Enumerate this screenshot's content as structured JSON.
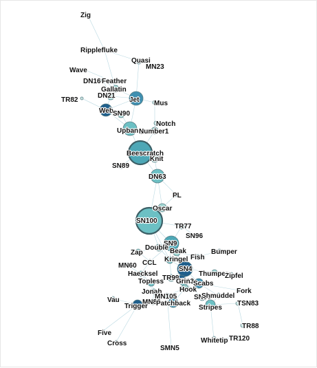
{
  "colors": {
    "edge": "#7fb8c8",
    "node_teal_light": "#9fd6d2",
    "node_teal": "#6cc0c4",
    "node_teal_dark": "#4da7b6",
    "node_blue": "#3f8fb0",
    "node_blue_dark": "#1f5f8c",
    "background": "#ffffff"
  },
  "network": {
    "nodes": [
      {
        "label": "Zig",
        "color": "#cfe9e6"
      },
      {
        "label": "Ripplefluke",
        "color": "#cfe9e6"
      },
      {
        "label": "Quasi",
        "color": "#cfe9e6"
      },
      {
        "label": "MN23",
        "color": "#cfe9e6"
      },
      {
        "label": "Wave",
        "color": "#cfe9e6"
      },
      {
        "label": "DN16",
        "color": "#cfe9e6"
      },
      {
        "label": "Feather",
        "color": "#cfe9e6"
      },
      {
        "label": "Gallatin",
        "color": "#9fd6d2"
      },
      {
        "label": "DN21",
        "color": "#9fd6d2"
      },
      {
        "label": "Jet",
        "color": "#3f8fb0"
      },
      {
        "label": "TR82",
        "color": "#cfe9e6"
      },
      {
        "label": "Mus",
        "color": "#cfe9e6"
      },
      {
        "label": "Web",
        "color": "#1f5f8c"
      },
      {
        "label": "SN90",
        "color": "#9fd6d2"
      },
      {
        "label": "Notch",
        "color": "#cfe9e6"
      },
      {
        "label": "Upbang",
        "color": "#6cc0c4"
      },
      {
        "label": "Number1",
        "color": "#9fd6d2"
      },
      {
        "label": "Beescratch",
        "color": "#4da7b6"
      },
      {
        "label": "Knit",
        "color": "#9fd6d2"
      },
      {
        "label": "SN89",
        "color": "#cfe9e6"
      },
      {
        "label": "DN63",
        "color": "#6cc0c4"
      },
      {
        "label": "PL",
        "color": "#cfe9e6"
      },
      {
        "label": "Oscar",
        "color": "#9fd6d2"
      },
      {
        "label": "SN100",
        "color": "#6cc0c4"
      },
      {
        "label": "TR77",
        "color": "#9fd6d2"
      },
      {
        "label": "SN96",
        "color": "#cfe9e6"
      },
      {
        "label": "SN9",
        "color": "#4da7b6"
      },
      {
        "label": "Double",
        "color": "#9fd6d2"
      },
      {
        "label": "Beak",
        "color": "#9fd6d2"
      },
      {
        "label": "Zap",
        "color": "#9fd6d2"
      },
      {
        "label": "Kringel",
        "color": "#6cc0c4"
      },
      {
        "label": "Fish",
        "color": "#9fd6d2"
      },
      {
        "label": "Bumper",
        "color": "#cfe9e6"
      },
      {
        "label": "CCL",
        "color": "#cfe9e6"
      },
      {
        "label": "MN60",
        "color": "#cfe9e6"
      },
      {
        "label": "SN4",
        "color": "#1f5f8c"
      },
      {
        "label": "Thumper",
        "color": "#9fd6d2"
      },
      {
        "label": "Zipfel",
        "color": "#cfe9e6"
      },
      {
        "label": "Haecksel",
        "color": "#9fd6d2"
      },
      {
        "label": "TR99",
        "color": "#9fd6d2"
      },
      {
        "label": "SN63",
        "color": "#6cc0c4"
      },
      {
        "label": "Grin",
        "color": "#1f5f8c"
      },
      {
        "label": "Scabs",
        "color": "#3f8fb0"
      },
      {
        "label": "Topless",
        "color": "#6cc0c4"
      },
      {
        "label": "Jonah",
        "color": "#9fd6d2"
      },
      {
        "label": "Hook",
        "color": "#9fd6d2"
      },
      {
        "label": "Fork",
        "color": "#cfe9e6"
      },
      {
        "label": "MN105",
        "color": "#9fd6d2"
      },
      {
        "label": "SN90",
        "color": "#cfe9e6"
      },
      {
        "label": "Shmuddel",
        "color": "#9fd6d2"
      },
      {
        "label": "Vau",
        "color": "#cfe9e6"
      },
      {
        "label": "MN83",
        "color": "#9fd6d2"
      },
      {
        "label": "Patchback",
        "color": "#3f8fb0"
      },
      {
        "label": "Trigger",
        "color": "#1f5f8c"
      },
      {
        "label": "Stripes",
        "color": "#6cc0c4"
      },
      {
        "label": "TSN83",
        "color": "#cfe9e6"
      },
      {
        "label": "TR88",
        "color": "#cfe9e6"
      },
      {
        "label": "Five",
        "color": "#cfe9e6"
      },
      {
        "label": "Cross",
        "color": "#cfe9e6"
      },
      {
        "label": "Whitetip",
        "color": "#cfe9e6"
      },
      {
        "label": "TR120",
        "color": "#cfe9e6"
      },
      {
        "label": "SMN5",
        "color": "#cfe9e6"
      }
    ],
    "edges": [
      [
        0,
        1
      ],
      [
        1,
        2
      ],
      [
        1,
        7
      ],
      [
        2,
        3
      ],
      [
        2,
        9
      ],
      [
        4,
        6
      ],
      [
        5,
        7
      ],
      [
        5,
        8
      ],
      [
        6,
        7
      ],
      [
        7,
        9
      ],
      [
        8,
        12
      ],
      [
        8,
        9
      ],
      [
        9,
        11
      ],
      [
        9,
        15
      ],
      [
        9,
        12
      ],
      [
        10,
        12
      ],
      [
        12,
        13
      ],
      [
        12,
        15
      ],
      [
        13,
        15
      ],
      [
        11,
        16
      ],
      [
        14,
        16
      ],
      [
        15,
        16
      ],
      [
        15,
        17
      ],
      [
        16,
        17
      ],
      [
        17,
        18
      ],
      [
        17,
        19
      ],
      [
        17,
        20
      ],
      [
        18,
        20
      ],
      [
        20,
        21
      ],
      [
        20,
        22
      ],
      [
        20,
        23
      ],
      [
        21,
        22
      ],
      [
        22,
        23
      ],
      [
        23,
        24
      ],
      [
        23,
        26
      ],
      [
        23,
        27
      ],
      [
        24,
        25
      ],
      [
        24,
        26
      ],
      [
        26,
        28
      ],
      [
        26,
        30
      ],
      [
        26,
        35
      ],
      [
        27,
        29
      ],
      [
        27,
        30
      ],
      [
        28,
        31
      ],
      [
        28,
        35
      ],
      [
        29,
        33
      ],
      [
        30,
        35
      ],
      [
        31,
        32
      ],
      [
        33,
        38
      ],
      [
        34,
        38
      ],
      [
        35,
        36
      ],
      [
        35,
        40
      ],
      [
        35,
        41
      ],
      [
        35,
        42
      ],
      [
        36,
        37
      ],
      [
        38,
        43
      ],
      [
        38,
        44
      ],
      [
        39,
        40
      ],
      [
        39,
        43
      ],
      [
        40,
        41
      ],
      [
        40,
        42
      ],
      [
        41,
        45
      ],
      [
        42,
        49
      ],
      [
        42,
        46
      ],
      [
        43,
        44
      ],
      [
        44,
        47
      ],
      [
        44,
        51
      ],
      [
        45,
        47
      ],
      [
        45,
        52
      ],
      [
        47,
        52
      ],
      [
        48,
        49
      ],
      [
        48,
        54
      ],
      [
        49,
        54
      ],
      [
        50,
        53
      ],
      [
        51,
        53
      ],
      [
        52,
        53
      ],
      [
        53,
        57
      ],
      [
        53,
        58
      ],
      [
        54,
        55
      ],
      [
        54,
        59
      ],
      [
        55,
        56
      ],
      [
        47,
        61
      ],
      [
        59,
        60
      ],
      [
        41,
        48
      ],
      [
        26,
        33
      ],
      [
        30,
        39
      ],
      [
        35,
        39
      ],
      [
        23,
        30
      ]
    ]
  }
}
